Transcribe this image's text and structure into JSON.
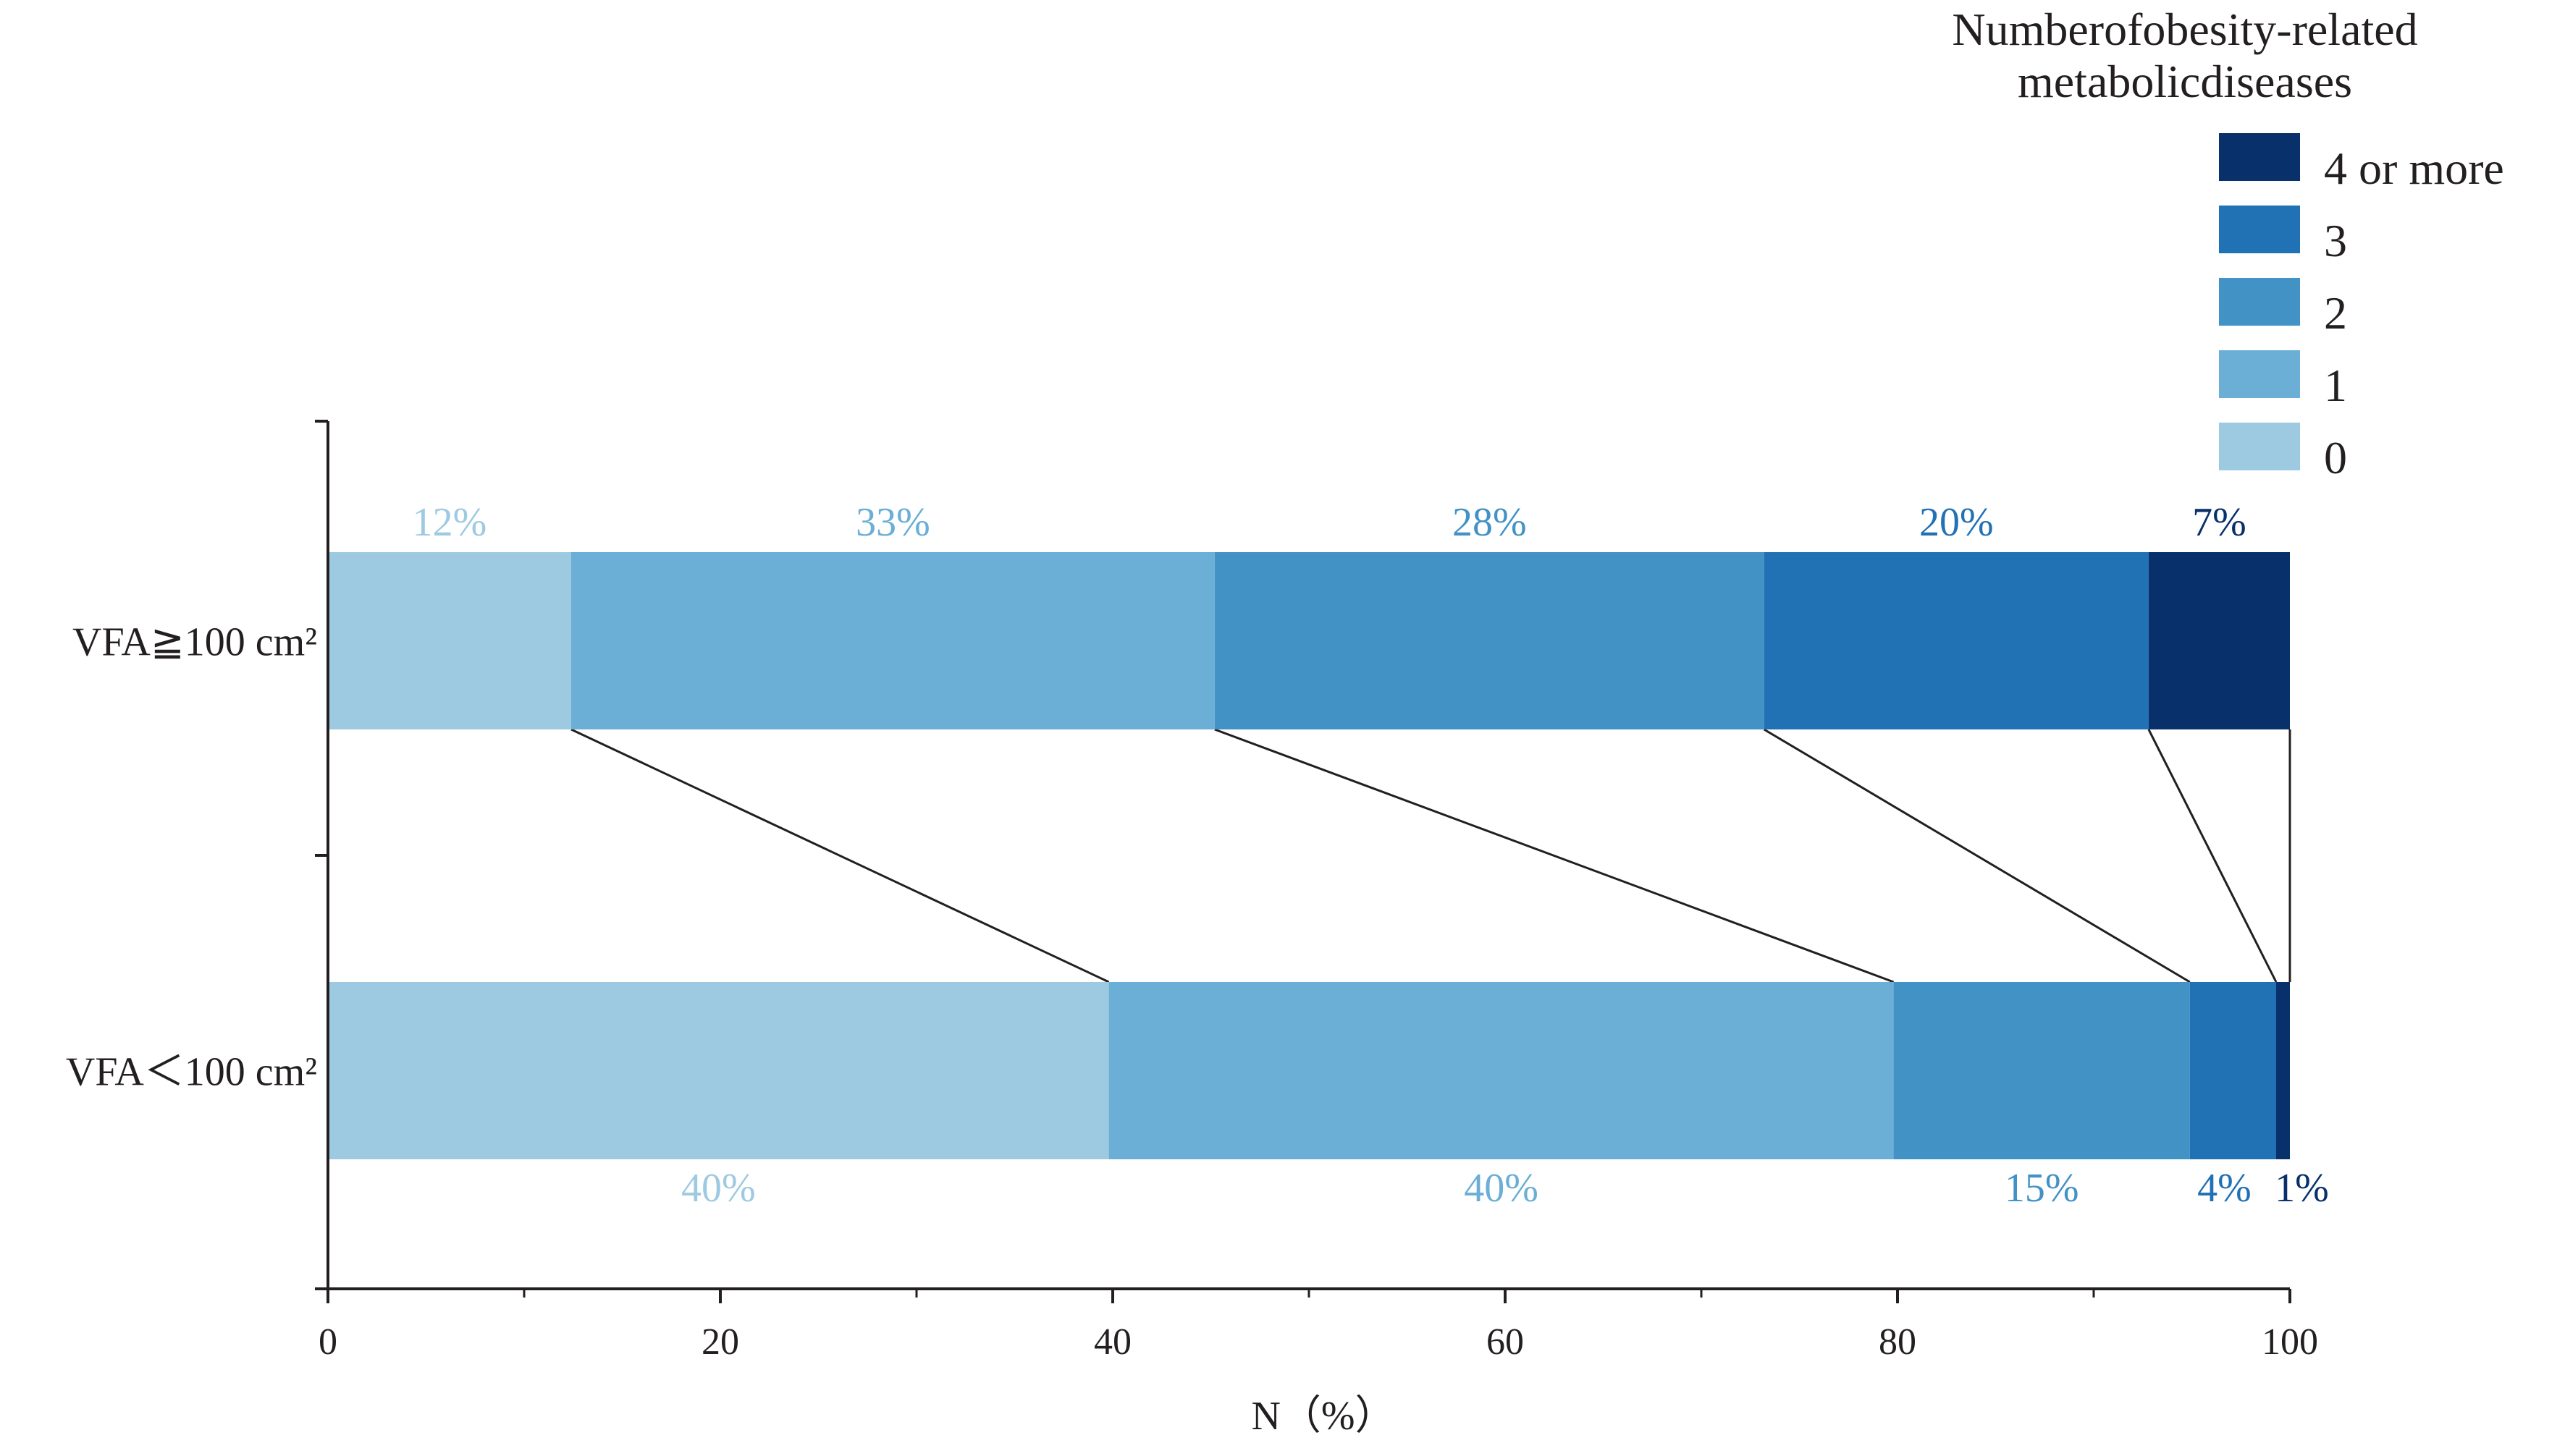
{
  "chart_data": {
    "type": "bar",
    "orientation": "horizontal",
    "stacked": true,
    "legend_title": "Numberofobesity-related metabolicdiseases",
    "legend_placement": "top-right",
    "xlabel": "N（%）",
    "ylabel": "",
    "xlim": [
      0,
      100
    ],
    "xticks": [
      "0",
      "20",
      "40",
      "60",
      "80",
      "100"
    ],
    "grid": false,
    "categories": [
      "VFA≧100 cm²",
      "VFA＜100 cm²"
    ],
    "series": [
      {
        "name": "0",
        "color": "#9ecae1",
        "values": [
          12.4,
          39.8
        ],
        "labels": [
          "12%",
          "40%"
        ]
      },
      {
        "name": "1",
        "color": "#6baed6",
        "values": [
          32.8,
          40.0
        ],
        "labels": [
          "33%",
          "40%"
        ]
      },
      {
        "name": "2",
        "color": "#4292c6",
        "values": [
          28.0,
          15.1
        ],
        "labels": [
          "28%",
          "15%"
        ]
      },
      {
        "name": "3",
        "color": "#2171b5",
        "values": [
          19.6,
          4.4
        ],
        "labels": [
          "20%",
          "4%"
        ]
      },
      {
        "name": "4 or more",
        "color": "#08306b",
        "values": [
          7.2,
          0.7
        ],
        "labels": [
          "7%",
          "1%"
        ]
      }
    ],
    "legend_order": [
      "4 or more",
      "3",
      "2",
      "1",
      "0"
    ],
    "connector_lines": true
  }
}
